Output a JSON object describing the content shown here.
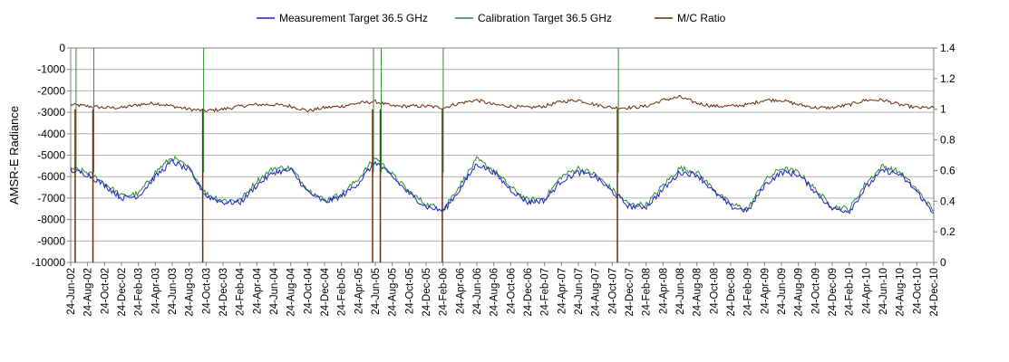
{
  "chart_data": {
    "type": "line",
    "title": "",
    "ylabel": "AMSR-E Radiance",
    "y2label": "",
    "ylim": [
      -10000,
      0
    ],
    "y2lim": [
      0,
      1.4
    ],
    "yticks": [
      "0",
      "-1000",
      "-2000",
      "-3000",
      "-4000",
      "-5000",
      "-6000",
      "-7000",
      "-8000",
      "-9000",
      "-10000"
    ],
    "y2ticks": [
      "1.4",
      "1.2",
      "1",
      "0.8",
      "0.6",
      "0.4",
      "0.2",
      "0"
    ],
    "grid": true,
    "legend_position": "top-center",
    "xlim": [
      "2002-06-24",
      "2010-12-24"
    ],
    "x_tick_labels": [
      "24-Jun-02",
      "24-Aug-02",
      "24-Oct-02",
      "24-Dec-02",
      "24-Feb-03",
      "24-Apr-03",
      "24-Jun-03",
      "24-Aug-03",
      "24-Oct-03",
      "24-Dec-03",
      "24-Feb-04",
      "24-Apr-04",
      "24-Jun-04",
      "24-Aug-04",
      "24-Oct-04",
      "24-Dec-04",
      "24-Feb-05",
      "24-Apr-05",
      "24-Jun-05",
      "24-Aug-05",
      "24-Oct-05",
      "24-Dec-05",
      "24-Feb-06",
      "24-Apr-06",
      "24-Jun-06",
      "24-Aug-06",
      "24-Oct-06",
      "24-Dec-06",
      "24-Feb-07",
      "24-Apr-07",
      "24-Jun-07",
      "24-Aug-07",
      "24-Oct-07",
      "24-Dec-07",
      "24-Feb-08",
      "24-Apr-08",
      "24-Jun-08",
      "24-Aug-08",
      "24-Oct-08",
      "24-Dec-08",
      "24-Feb-09",
      "24-Apr-09",
      "24-Jun-09",
      "24-Aug-09",
      "24-Oct-09",
      "24-Dec-09",
      "24-Feb-10",
      "24-Apr-10",
      "24-Jun-10",
      "24-Aug-10",
      "24-Oct-10",
      "24-Dec-10"
    ],
    "series": [
      {
        "name": "Measurement Target 36.5 GHz",
        "axis": "left",
        "color": "#1f1fd6",
        "x": [
          "2002-06-24",
          "2002-08-24",
          "2002-10-24",
          "2002-12-24",
          "2003-02-24",
          "2003-04-24",
          "2003-06-24",
          "2003-08-24",
          "2003-10-24",
          "2003-12-24",
          "2004-02-24",
          "2004-04-24",
          "2004-06-24",
          "2004-08-24",
          "2004-10-24",
          "2004-12-24",
          "2005-02-24",
          "2005-04-24",
          "2005-06-24",
          "2005-08-24",
          "2005-10-24",
          "2005-12-24",
          "2006-02-24",
          "2006-04-24",
          "2006-06-24",
          "2006-08-24",
          "2006-10-24",
          "2006-12-24",
          "2007-02-24",
          "2007-04-24",
          "2007-06-24",
          "2007-08-24",
          "2007-10-24",
          "2007-12-24",
          "2008-02-24",
          "2008-04-24",
          "2008-06-24",
          "2008-08-24",
          "2008-10-24",
          "2008-12-24",
          "2009-02-24",
          "2009-04-24",
          "2009-06-24",
          "2009-08-24",
          "2009-10-24",
          "2009-12-24",
          "2010-02-24",
          "2010-04-24",
          "2010-06-24",
          "2010-08-24",
          "2010-10-24",
          "2010-12-24"
        ],
        "values": [
          -5700,
          -5900,
          -6400,
          -7000,
          -6900,
          -6000,
          -5300,
          -5700,
          -6900,
          -7200,
          -7200,
          -6400,
          -5800,
          -5700,
          -6700,
          -7200,
          -6900,
          -6300,
          -5300,
          -6000,
          -6800,
          -7400,
          -7600,
          -6600,
          -5400,
          -5800,
          -6600,
          -7200,
          -7100,
          -6200,
          -5800,
          -6000,
          -6700,
          -7400,
          -7400,
          -6600,
          -5800,
          -5900,
          -6700,
          -7400,
          -7600,
          -6400,
          -5800,
          -5900,
          -6700,
          -7500,
          -7600,
          -6500,
          -5700,
          -5900,
          -6700,
          -7700
        ]
      },
      {
        "name": "Calibration Target 36.5 GHz",
        "axis": "left",
        "color": "#2e8b2e",
        "x": [
          "2002-06-24",
          "2002-08-24",
          "2002-10-24",
          "2002-12-24",
          "2003-02-24",
          "2003-04-24",
          "2003-06-24",
          "2003-08-24",
          "2003-10-24",
          "2003-12-24",
          "2004-02-24",
          "2004-04-24",
          "2004-06-24",
          "2004-08-24",
          "2004-10-24",
          "2004-12-24",
          "2005-02-24",
          "2005-04-24",
          "2005-06-24",
          "2005-08-24",
          "2005-10-24",
          "2005-12-24",
          "2006-02-24",
          "2006-04-24",
          "2006-06-24",
          "2006-08-24",
          "2006-10-24",
          "2006-12-24",
          "2007-02-24",
          "2007-04-24",
          "2007-06-24",
          "2007-08-24",
          "2007-10-24",
          "2007-12-24",
          "2008-02-24",
          "2008-04-24",
          "2008-06-24",
          "2008-08-24",
          "2008-10-24",
          "2008-12-24",
          "2009-02-24",
          "2009-04-24",
          "2009-06-24",
          "2009-08-24",
          "2009-10-24",
          "2009-12-24",
          "2010-02-24",
          "2010-04-24",
          "2010-06-24",
          "2010-08-24",
          "2010-10-24",
          "2010-12-24"
        ],
        "values": [
          -5600,
          -5800,
          -6300,
          -6900,
          -6800,
          -5800,
          -5100,
          -5600,
          -6800,
          -7100,
          -7100,
          -6200,
          -5600,
          -5600,
          -6600,
          -7100,
          -6800,
          -6100,
          -5100,
          -5900,
          -6700,
          -7300,
          -7500,
          -6400,
          -5200,
          -5700,
          -6500,
          -7100,
          -7000,
          -6000,
          -5600,
          -5900,
          -6600,
          -7300,
          -7300,
          -6400,
          -5600,
          -5800,
          -6600,
          -7300,
          -7500,
          -6200,
          -5600,
          -5800,
          -6600,
          -7400,
          -7500,
          -6300,
          -5500,
          -5800,
          -6600,
          -7600
        ]
      },
      {
        "name": "M/C Ratio",
        "axis": "right",
        "color": "#6b2a0a",
        "x": [
          "2002-06-24",
          "2002-08-24",
          "2002-10-24",
          "2002-12-24",
          "2003-02-24",
          "2003-04-24",
          "2003-06-24",
          "2003-08-24",
          "2003-10-24",
          "2003-12-24",
          "2004-02-24",
          "2004-04-24",
          "2004-06-24",
          "2004-08-24",
          "2004-10-24",
          "2004-12-24",
          "2005-02-24",
          "2005-04-24",
          "2005-06-24",
          "2005-08-24",
          "2005-10-24",
          "2005-12-24",
          "2006-02-24",
          "2006-04-24",
          "2006-06-24",
          "2006-08-24",
          "2006-10-24",
          "2006-12-24",
          "2007-02-24",
          "2007-04-24",
          "2007-06-24",
          "2007-08-24",
          "2007-10-24",
          "2007-12-24",
          "2008-02-24",
          "2008-04-24",
          "2008-06-24",
          "2008-08-24",
          "2008-10-24",
          "2008-12-24",
          "2009-02-24",
          "2009-04-24",
          "2009-06-24",
          "2009-08-24",
          "2009-10-24",
          "2009-12-24",
          "2010-02-24",
          "2010-04-24",
          "2010-06-24",
          "2010-08-24",
          "2010-10-24",
          "2010-12-24"
        ],
        "values": [
          1.03,
          1.02,
          1.01,
          1.01,
          1.03,
          1.04,
          1.02,
          1.0,
          0.99,
          1.0,
          1.02,
          1.03,
          1.03,
          1.02,
          0.99,
          1.01,
          1.02,
          1.04,
          1.05,
          1.02,
          1.02,
          1.02,
          1.01,
          1.04,
          1.06,
          1.03,
          1.02,
          1.01,
          1.02,
          1.05,
          1.06,
          1.03,
          1.01,
          1.01,
          1.02,
          1.06,
          1.08,
          1.04,
          1.02,
          1.02,
          1.03,
          1.06,
          1.06,
          1.03,
          1.01,
          1.01,
          1.03,
          1.06,
          1.06,
          1.03,
          1.01,
          1.01
        ]
      }
    ],
    "spikes": [
      {
        "date": "2002-07-10",
        "type": "drop",
        "series": "M/C Ratio"
      },
      {
        "date": "2002-09-12",
        "type": "drop",
        "series": "M/C Ratio"
      },
      {
        "date": "2003-10-12",
        "type": "drop",
        "series": "M/C Ratio"
      },
      {
        "date": "2005-06-14",
        "type": "drop",
        "series": "M/C Ratio"
      },
      {
        "date": "2005-07-12",
        "type": "drop",
        "series": "M/C Ratio"
      },
      {
        "date": "2006-02-20",
        "type": "drop",
        "series": "M/C Ratio"
      },
      {
        "date": "2007-11-12",
        "type": "drop",
        "series": "M/C Ratio"
      }
    ]
  },
  "legend": {
    "items": [
      {
        "label": "Measurement Target 36.5 GHz",
        "color": "#1f1fd6"
      },
      {
        "label": "Calibration Target 36.5 GHz",
        "color": "#2e8b2e"
      },
      {
        "label": "M/C Ratio",
        "color": "#6b2a0a"
      }
    ]
  }
}
